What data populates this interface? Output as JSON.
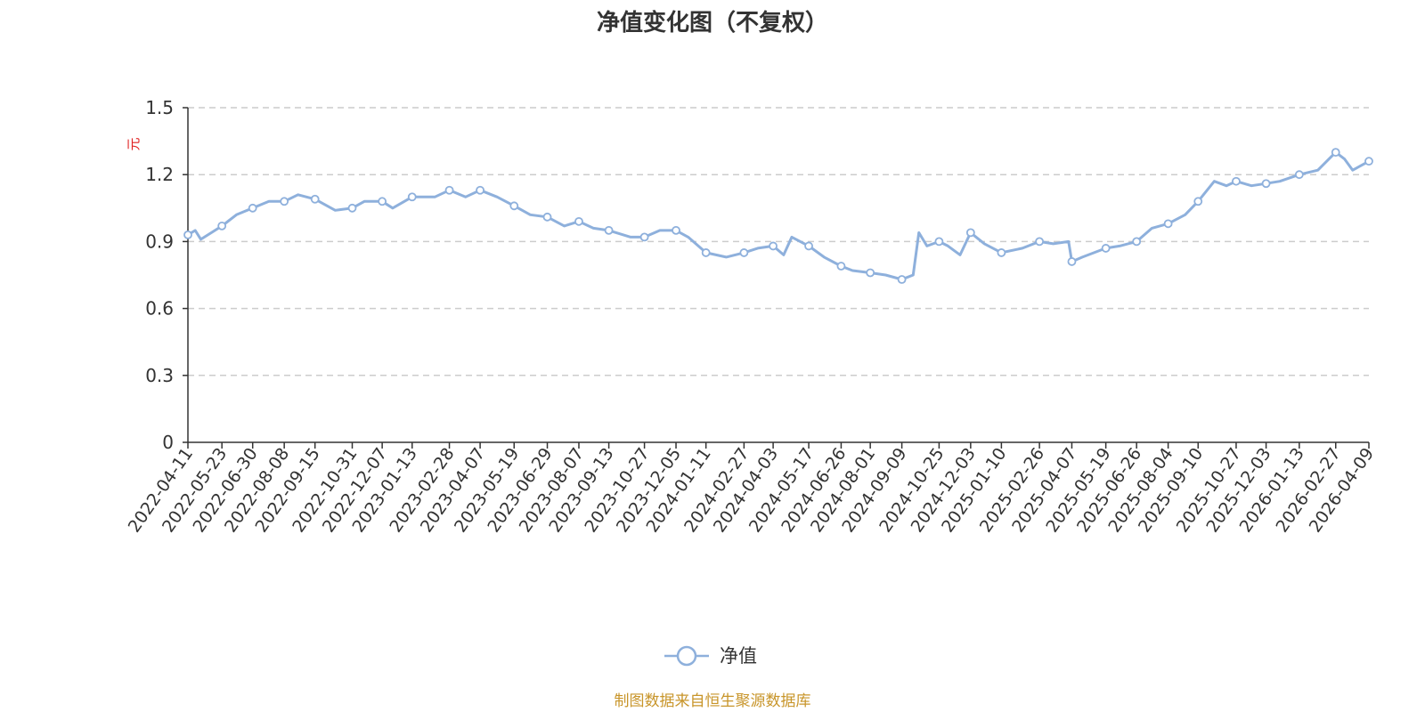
{
  "chart_data": {
    "type": "line",
    "title": "净值变化图（不复权）",
    "ylabel": "元",
    "ylim": [
      0,
      1.5
    ],
    "yticks": [
      0,
      0.3,
      0.6,
      0.9,
      1.2,
      1.5
    ],
    "ytick_labels": [
      "0",
      "0.3",
      "0.6",
      "0.9",
      "1.2",
      "1.5"
    ],
    "grid": true,
    "legend": {
      "position": "bottom-center",
      "entries": [
        "净值"
      ]
    },
    "source": "制图数据来自恒生聚源数据库",
    "colors": {
      "line": "#8eb0dc",
      "marker_fill": "#ffffff",
      "grid": "#cccccc",
      "axis": "#333333",
      "unit": "#e02020",
      "source": "#c8952a"
    },
    "x_tick_labels": [
      "2022-04-11",
      "2022-05-23",
      "2022-06-30",
      "2022-08-08",
      "2022-09-15",
      "2022-10-31",
      "2022-12-07",
      "2023-01-13",
      "2023-02-28",
      "2023-04-07",
      "2023-05-19",
      "2023-06-29",
      "2023-08-07",
      "2023-09-13",
      "2023-10-27",
      "2023-12-05",
      "2024-01-11",
      "2024-02-27",
      "2024-04-03",
      "2024-05-17",
      "2024-06-26",
      "2024-08-01",
      "2024-09-09",
      "2024-10-25",
      "2024-12-03",
      "2025-01-10",
      "2025-02-26",
      "2025-04-07",
      "2025-05-19",
      "2025-06-26",
      "2025-08-04",
      "2025-09-10",
      "2025-10-27",
      "2025-12-03",
      "2026-01-13",
      "2026-02-27",
      "2026-04-09"
    ],
    "series": [
      {
        "name": "净值",
        "x": [
          "2022-04-11",
          "2022-04-20",
          "2022-04-27",
          "2022-05-10",
          "2022-05-23",
          "2022-06-10",
          "2022-06-30",
          "2022-07-20",
          "2022-08-08",
          "2022-08-25",
          "2022-09-15",
          "2022-10-10",
          "2022-10-31",
          "2022-11-15",
          "2022-12-07",
          "2022-12-20",
          "2023-01-13",
          "2023-02-10",
          "2023-02-28",
          "2023-03-20",
          "2023-04-07",
          "2023-04-28",
          "2023-05-19",
          "2023-06-08",
          "2023-06-29",
          "2023-07-20",
          "2023-08-07",
          "2023-08-25",
          "2023-09-13",
          "2023-10-10",
          "2023-10-27",
          "2023-11-15",
          "2023-12-05",
          "2023-12-20",
          "2024-01-11",
          "2024-02-05",
          "2024-02-27",
          "2024-03-15",
          "2024-04-03",
          "2024-04-16",
          "2024-04-26",
          "2024-05-17",
          "2024-06-05",
          "2024-06-26",
          "2024-07-10",
          "2024-08-01",
          "2024-08-20",
          "2024-09-09",
          "2024-09-23",
          "2024-09-30",
          "2024-10-10",
          "2024-10-25",
          "2024-11-05",
          "2024-11-20",
          "2024-12-03",
          "2024-12-20",
          "2025-01-10",
          "2025-02-05",
          "2025-02-26",
          "2025-03-15",
          "2025-04-03",
          "2025-04-07",
          "2025-04-20",
          "2025-05-19",
          "2025-06-05",
          "2025-06-26",
          "2025-07-15",
          "2025-08-04",
          "2025-08-25",
          "2025-09-10",
          "2025-09-30",
          "2025-10-15",
          "2025-10-27",
          "2025-11-15",
          "2025-12-03",
          "2025-12-20",
          "2026-01-13",
          "2026-02-05",
          "2026-02-27",
          "2026-03-10",
          "2026-03-20",
          "2026-04-09"
        ],
        "values": [
          0.93,
          0.95,
          0.91,
          0.94,
          0.97,
          1.02,
          1.05,
          1.08,
          1.08,
          1.11,
          1.09,
          1.04,
          1.05,
          1.08,
          1.08,
          1.05,
          1.1,
          1.1,
          1.13,
          1.1,
          1.13,
          1.1,
          1.06,
          1.02,
          1.01,
          0.97,
          0.99,
          0.96,
          0.95,
          0.92,
          0.92,
          0.95,
          0.95,
          0.92,
          0.85,
          0.83,
          0.85,
          0.87,
          0.88,
          0.84,
          0.92,
          0.88,
          0.83,
          0.79,
          0.77,
          0.76,
          0.75,
          0.73,
          0.75,
          0.94,
          0.88,
          0.9,
          0.88,
          0.84,
          0.94,
          0.89,
          0.85,
          0.87,
          0.9,
          0.89,
          0.9,
          0.81,
          0.83,
          0.87,
          0.88,
          0.9,
          0.96,
          0.98,
          1.02,
          1.08,
          1.17,
          1.15,
          1.17,
          1.15,
          1.16,
          1.17,
          1.2,
          1.22,
          1.3,
          1.27,
          1.22,
          1.26
        ]
      }
    ],
    "markers": {
      "dates": [
        "2022-04-11",
        "2022-05-23",
        "2022-06-30",
        "2022-08-08",
        "2022-09-15",
        "2022-10-31",
        "2022-12-07",
        "2023-01-13",
        "2023-02-28",
        "2023-04-07",
        "2023-05-19",
        "2023-06-29",
        "2023-08-07",
        "2023-09-13",
        "2023-10-27",
        "2023-12-05",
        "2024-01-11",
        "2024-02-27",
        "2024-04-03",
        "2024-05-17",
        "2024-06-26",
        "2024-08-01",
        "2024-09-09",
        "2024-10-25",
        "2024-12-03",
        "2025-01-10",
        "2025-02-26",
        "2025-04-07",
        "2025-05-19",
        "2025-06-26",
        "2025-08-04",
        "2025-09-10",
        "2025-10-27",
        "2025-12-03",
        "2026-01-13",
        "2026-02-27",
        "2026-04-09"
      ],
      "values": [
        0.93,
        0.97,
        1.05,
        1.08,
        1.09,
        1.05,
        1.08,
        1.1,
        1.13,
        1.13,
        1.06,
        1.01,
        0.99,
        0.95,
        0.92,
        0.95,
        0.85,
        0.85,
        0.88,
        0.88,
        0.79,
        0.76,
        0.73,
        0.9,
        0.94,
        0.85,
        0.9,
        0.81,
        0.87,
        0.9,
        0.98,
        1.08,
        1.17,
        1.16,
        1.2,
        1.3,
        1.26
      ]
    }
  }
}
